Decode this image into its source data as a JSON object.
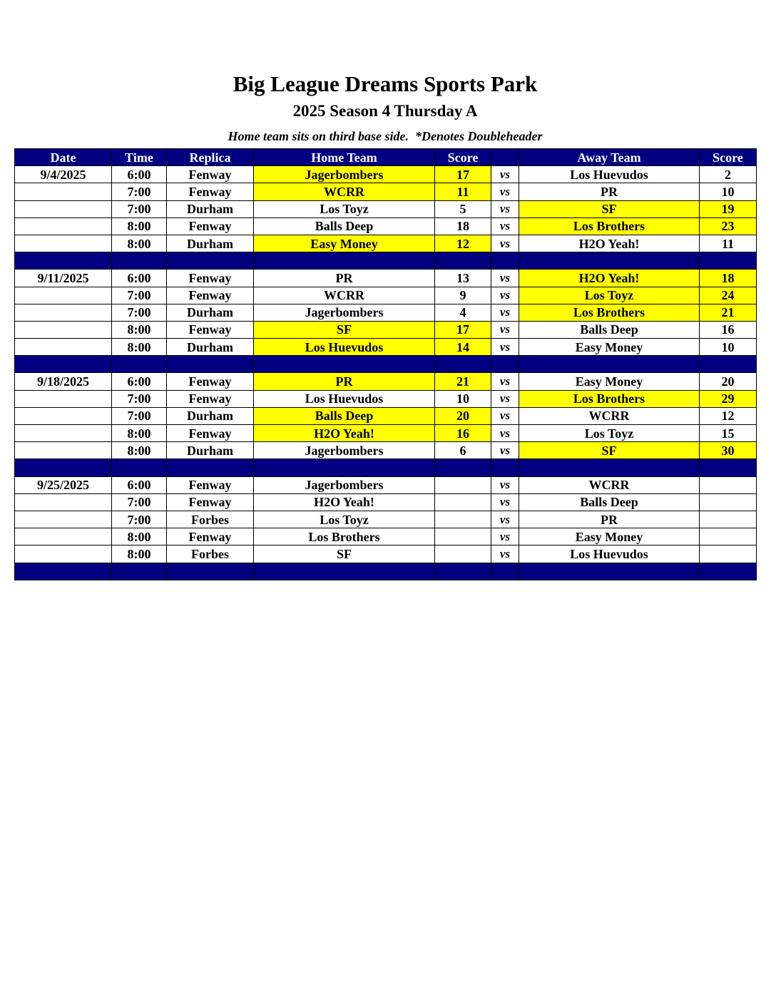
{
  "title": "Big League Dreams Sports Park",
  "subtitle": "2025 Season 4 Thursday A",
  "note": "Home team sits on third base side.  *Denotes Doubleheader",
  "colors": {
    "header": "#000080",
    "winner_highlight": "#ffff00"
  },
  "headers": [
    "Date",
    "Time",
    "Replica",
    "Home Team",
    "Score",
    "",
    "Away Team",
    "Score"
  ],
  "weeks": [
    {
      "date": "9/4/2025",
      "games": [
        {
          "time": "6:00",
          "field": "Fenway",
          "home": "Jagerbombers",
          "home_score": "17",
          "vs": "vs",
          "away": "Los Huevudos",
          "away_score": "2",
          "winner": "home"
        },
        {
          "time": "7:00",
          "field": "Fenway",
          "home": "WCRR",
          "home_score": "11",
          "vs": "vs",
          "away": "PR",
          "away_score": "10",
          "winner": "home"
        },
        {
          "time": "7:00",
          "field": "Durham",
          "home": "Los Toyz",
          "home_score": "5",
          "vs": "vs",
          "away": "SF",
          "away_score": "19",
          "winner": "away"
        },
        {
          "time": "8:00",
          "field": "Fenway",
          "home": "Balls Deep",
          "home_score": "18",
          "vs": "vs",
          "away": "Los Brothers",
          "away_score": "23",
          "winner": "away"
        },
        {
          "time": "8:00",
          "field": "Durham",
          "home": "Easy Money",
          "home_score": "12",
          "vs": "vs",
          "away": "H2O Yeah!",
          "away_score": "11",
          "winner": "home"
        }
      ]
    },
    {
      "date": "9/11/2025",
      "games": [
        {
          "time": "6:00",
          "field": "Fenway",
          "home": "PR",
          "home_score": "13",
          "vs": "vs",
          "away": "H2O Yeah!",
          "away_score": "18",
          "winner": "away"
        },
        {
          "time": "7:00",
          "field": "Fenway",
          "home": "WCRR",
          "home_score": "9",
          "vs": "vs",
          "away": "Los Toyz",
          "away_score": "24",
          "winner": "away"
        },
        {
          "time": "7:00",
          "field": "Durham",
          "home": "Jagerbombers",
          "home_score": "4",
          "vs": "vs",
          "away": "Los Brothers",
          "away_score": "21",
          "winner": "away"
        },
        {
          "time": "8:00",
          "field": "Fenway",
          "home": "SF",
          "home_score": "17",
          "vs": "vs",
          "away": "Balls Deep",
          "away_score": "16",
          "winner": "home"
        },
        {
          "time": "8:00",
          "field": "Durham",
          "home": "Los Huevudos",
          "home_score": "14",
          "vs": "vs",
          "away": "Easy Money",
          "away_score": "10",
          "winner": "home"
        }
      ]
    },
    {
      "date": "9/18/2025",
      "games": [
        {
          "time": "6:00",
          "field": "Fenway",
          "home": "PR",
          "home_score": "21",
          "vs": "vs",
          "away": "Easy Money",
          "away_score": "20",
          "winner": "home"
        },
        {
          "time": "7:00",
          "field": "Fenway",
          "home": "Los Huevudos",
          "home_score": "10",
          "vs": "vs",
          "away": "Los Brothers",
          "away_score": "29",
          "winner": "away"
        },
        {
          "time": "7:00",
          "field": "Durham",
          "home": "Balls Deep",
          "home_score": "20",
          "vs": "vs",
          "away": "WCRR",
          "away_score": "12",
          "winner": "home"
        },
        {
          "time": "8:00",
          "field": "Fenway",
          "home": "H2O Yeah!",
          "home_score": "16",
          "vs": "vs",
          "away": "Los Toyz",
          "away_score": "15",
          "winner": "home"
        },
        {
          "time": "8:00",
          "field": "Durham",
          "home": "Jagerbombers",
          "home_score": "6",
          "vs": "vs",
          "away": "SF",
          "away_score": "30",
          "winner": "away"
        }
      ]
    },
    {
      "date": "9/25/2025",
      "games": [
        {
          "time": "6:00",
          "field": "Fenway",
          "home": "Jagerbombers",
          "home_score": "",
          "vs": "vs",
          "away": "WCRR",
          "away_score": "",
          "winner": ""
        },
        {
          "time": "7:00",
          "field": "Fenway",
          "home": "H2O Yeah!",
          "home_score": "",
          "vs": "vs",
          "away": "Balls Deep",
          "away_score": "",
          "winner": ""
        },
        {
          "time": "7:00",
          "field": "Forbes",
          "home": "Los Toyz",
          "home_score": "",
          "vs": "vs",
          "away": "PR",
          "away_score": "",
          "winner": ""
        },
        {
          "time": "8:00",
          "field": "Fenway",
          "home": "Los Brothers",
          "home_score": "",
          "vs": "vs",
          "away": "Easy Money",
          "away_score": "",
          "winner": ""
        },
        {
          "time": "8:00",
          "field": "Forbes",
          "home": "SF",
          "home_score": "",
          "vs": "vs",
          "away": "Los Huevudos",
          "away_score": "",
          "winner": ""
        }
      ]
    }
  ]
}
